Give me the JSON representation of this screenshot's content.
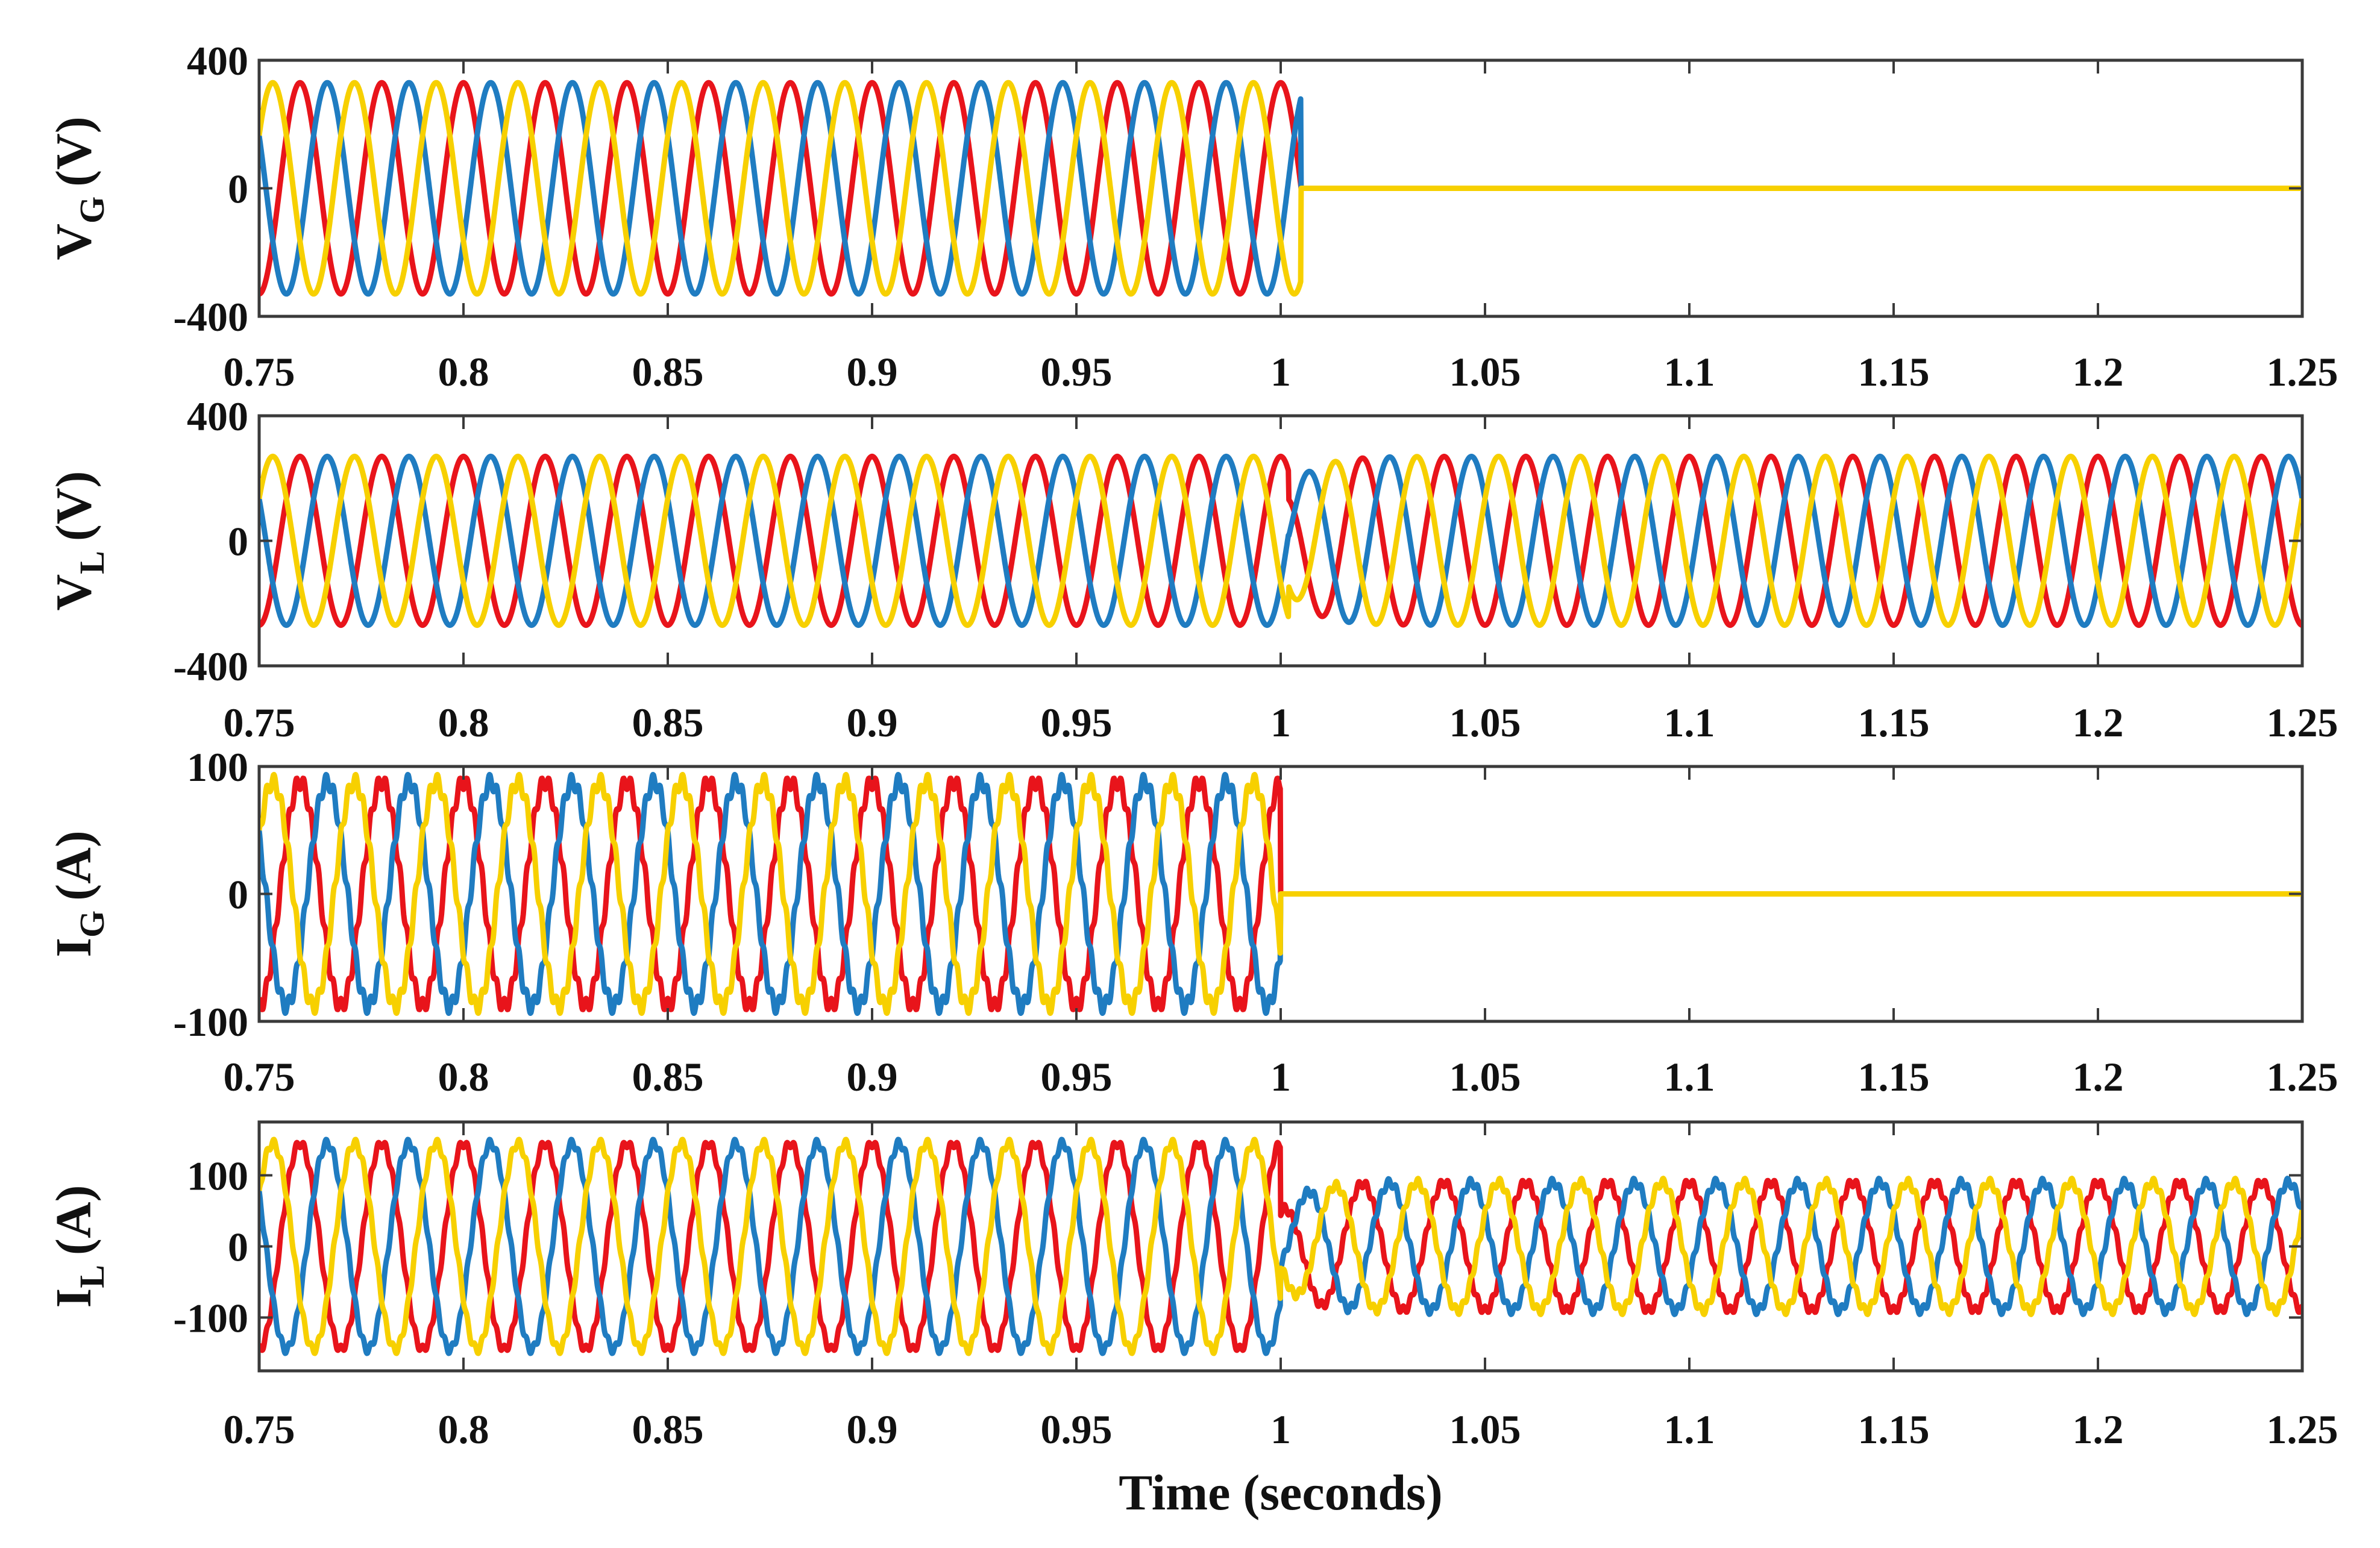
{
  "chart_data": [
    {
      "type": "line",
      "name": "grid-voltage",
      "ylabel_main": "V",
      "ylabel_sub": "G",
      "ylabel_unit": "(V)",
      "yticks": [
        -400,
        0,
        400
      ],
      "ytick_labels": [
        "-400",
        "0",
        "400"
      ],
      "ylim": [
        -400,
        400
      ],
      "xlim": [
        0.75,
        1.25
      ],
      "xticks": [
        0.75,
        0.8,
        0.85,
        0.9,
        0.95,
        1,
        1.05,
        1.1,
        1.15,
        1.2,
        1.25
      ],
      "xtick_labels": [
        "0.75",
        "0.8",
        "0.85",
        "0.9",
        "0.95",
        "1",
        "1.05",
        "1.1",
        "1.15",
        "1.2",
        "1.25"
      ],
      "fault_time": 1.005,
      "frequency_hz": 50,
      "amplitude_before": 330,
      "amplitude_after": 0,
      "ripple": 0,
      "series": [
        {
          "name": "phase-a",
          "color": "#e8141b",
          "phase_deg": 90
        },
        {
          "name": "phase-b",
          "color": "#1f7cc1",
          "phase_deg": -30
        },
        {
          "name": "phase-c",
          "color": "#f7d000",
          "phase_deg": 210
        }
      ]
    },
    {
      "type": "line",
      "name": "load-voltage",
      "ylabel_main": "V",
      "ylabel_sub": "L",
      "ylabel_unit": "(V)",
      "yticks": [
        -400,
        0,
        400
      ],
      "ytick_labels": [
        "-400",
        "0",
        "400"
      ],
      "ylim": [
        -400,
        400
      ],
      "xlim": [
        0.75,
        1.25
      ],
      "xticks": [
        0.75,
        0.8,
        0.85,
        0.9,
        0.95,
        1,
        1.05,
        1.1,
        1.15,
        1.2,
        1.25
      ],
      "xtick_labels": [
        "0.75",
        "0.8",
        "0.85",
        "0.9",
        "0.95",
        "1",
        "1.05",
        "1.1",
        "1.15",
        "1.2",
        "1.25"
      ],
      "fault_time": 1.002,
      "frequency_hz": 50,
      "amplitude_before": 270,
      "amplitude_after": 270,
      "transient_dip": 0.6,
      "ripple": 0,
      "series": [
        {
          "name": "phase-a",
          "color": "#e8141b",
          "phase_deg": 90
        },
        {
          "name": "phase-b",
          "color": "#1f7cc1",
          "phase_deg": -30
        },
        {
          "name": "phase-c",
          "color": "#f7d000",
          "phase_deg": 210
        }
      ]
    },
    {
      "type": "line",
      "name": "grid-current",
      "ylabel_main": "I",
      "ylabel_sub": "G",
      "ylabel_unit": "(A)",
      "yticks": [
        -100,
        0,
        100
      ],
      "ytick_labels": [
        "-100",
        "0",
        "100"
      ],
      "ylim": [
        -100,
        100
      ],
      "xlim": [
        0.75,
        1.25
      ],
      "xticks": [
        0.75,
        0.8,
        0.85,
        0.9,
        0.95,
        1,
        1.05,
        1.1,
        1.15,
        1.2,
        1.25
      ],
      "xtick_labels": [
        "0.75",
        "0.8",
        "0.85",
        "0.9",
        "0.95",
        "1",
        "1.05",
        "1.1",
        "1.15",
        "1.2",
        "1.25"
      ],
      "fault_time": 1.0,
      "frequency_hz": 50,
      "amplitude_before": 88,
      "amplitude_after": 0,
      "ripple": 6,
      "series": [
        {
          "name": "phase-a",
          "color": "#e8141b",
          "phase_deg": 90
        },
        {
          "name": "phase-b",
          "color": "#1f7cc1",
          "phase_deg": -30
        },
        {
          "name": "phase-c",
          "color": "#f7d000",
          "phase_deg": 210
        }
      ]
    },
    {
      "type": "line",
      "name": "load-current",
      "ylabel_main": "I",
      "ylabel_sub": "L",
      "ylabel_unit": "(A)",
      "yticks": [
        -100,
        0,
        100
      ],
      "ytick_labels": [
        "-100",
        "0",
        "100"
      ],
      "ylim": [
        -175,
        175
      ],
      "xlim": [
        0.75,
        1.25
      ],
      "xticks": [
        0.75,
        0.8,
        0.85,
        0.9,
        0.95,
        1,
        1.05,
        1.1,
        1.15,
        1.2,
        1.25
      ],
      "xtick_labels": [
        "0.75",
        "0.8",
        "0.85",
        "0.9",
        "0.95",
        "1",
        "1.05",
        "1.1",
        "1.15",
        "1.2",
        "1.25"
      ],
      "fault_time": 1.0,
      "frequency_hz": 50,
      "amplitude_before": 145,
      "amplitude_after": 90,
      "transient_dip": 0.55,
      "ripple": 6,
      "series": [
        {
          "name": "phase-a",
          "color": "#e8141b",
          "phase_deg": 90
        },
        {
          "name": "phase-b",
          "color": "#1f7cc1",
          "phase_deg": -30
        },
        {
          "name": "phase-c",
          "color": "#f7d000",
          "phase_deg": 210
        }
      ]
    }
  ],
  "xlabel": "Time (seconds)"
}
